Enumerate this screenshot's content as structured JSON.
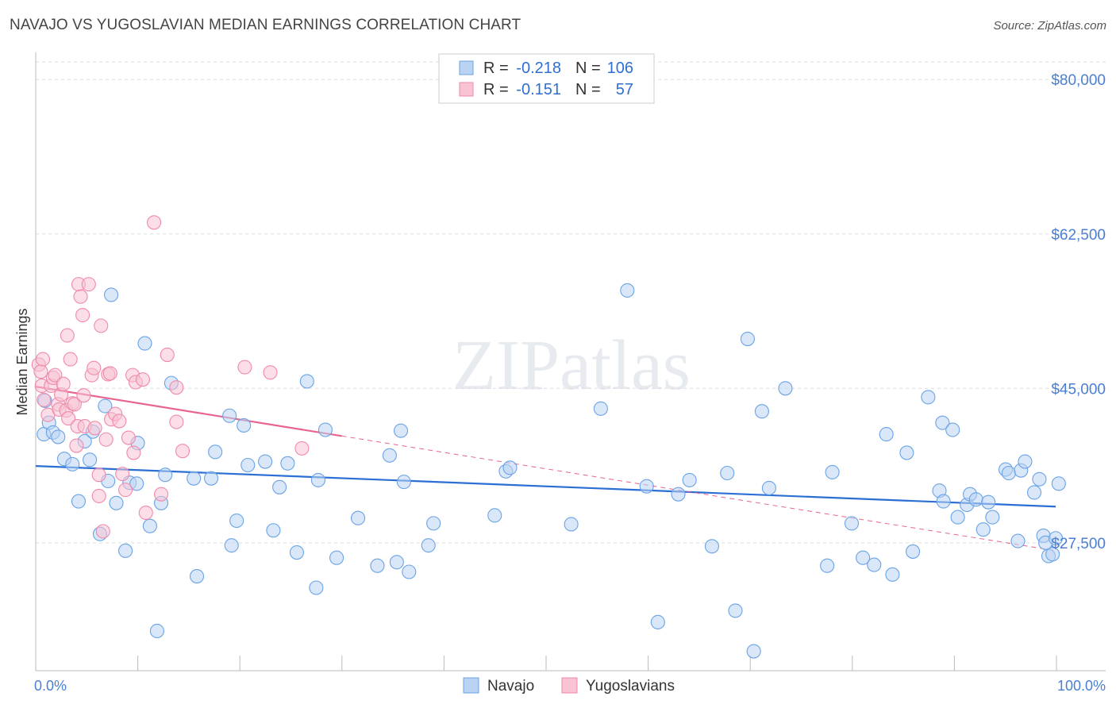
{
  "title": "NAVAJO VS YUGOSLAVIAN MEDIAN EARNINGS CORRELATION CHART",
  "source": "Source: ZipAtlas.com",
  "watermark": "ZIPatlas",
  "colors": {
    "navajo": "#6aa3e6",
    "navajo_fill": "#b9d3f3",
    "navajo_line": "#2b6fd4",
    "yugo": "#f08aaa",
    "yugo_fill": "#f8c3d3",
    "yugo_line": "#e8648f",
    "label": "#4a7fd4",
    "grid": "#dddddd"
  },
  "legend": {
    "r_label": "R =",
    "n_label": "N =",
    "rows": [
      {
        "r": "-0.218",
        "n": "106",
        "series": "navajo"
      },
      {
        "r": "-0.151",
        "n": "57",
        "series": "yugo"
      }
    ]
  },
  "bottom_legend": [
    "Navajo",
    "Yugoslavians"
  ],
  "chart_data": {
    "type": "scatter",
    "title": "NAVAJO VS YUGOSLAVIAN MEDIAN EARNINGS CORRELATION CHART",
    "xlabel": "",
    "ylabel": "Median Earnings",
    "xlim": [
      0,
      100
    ],
    "ylim": [
      13000,
      82000
    ],
    "x_tick_labels": [
      "0.0%",
      "100.0%"
    ],
    "y_ticks": [
      27500,
      45000,
      62500,
      80000
    ],
    "y_tick_labels": [
      "$27,500",
      "$45,000",
      "$62,500",
      "$80,000"
    ],
    "grid": "horizontal dashed",
    "legend_position": "top-center",
    "series": [
      {
        "name": "Navajo",
        "trend": {
          "x": [
            0,
            100
          ],
          "y": [
            36200,
            31600
          ]
        },
        "points": [
          [
            0.8,
            39800
          ],
          [
            0.9,
            43600
          ],
          [
            1.3,
            41100
          ],
          [
            1.7,
            40000
          ],
          [
            2.2,
            39500
          ],
          [
            2.8,
            37000
          ],
          [
            3.6,
            36400
          ],
          [
            4.2,
            32200
          ],
          [
            4.8,
            39000
          ],
          [
            5.3,
            36900
          ],
          [
            5.6,
            40100
          ],
          [
            6.3,
            28500
          ],
          [
            6.8,
            43000
          ],
          [
            7.1,
            34500
          ],
          [
            7.4,
            55600
          ],
          [
            7.9,
            32000
          ],
          [
            8.8,
            26600
          ],
          [
            9.2,
            34300
          ],
          [
            9.9,
            34200
          ],
          [
            10.0,
            38800
          ],
          [
            10.7,
            50100
          ],
          [
            11.2,
            29400
          ],
          [
            11.9,
            17500
          ],
          [
            12.3,
            32000
          ],
          [
            12.7,
            35200
          ],
          [
            13.3,
            45600
          ],
          [
            15.8,
            23700
          ],
          [
            15.5,
            34800
          ],
          [
            17.2,
            34800
          ],
          [
            17.6,
            37800
          ],
          [
            19.0,
            41900
          ],
          [
            19.2,
            27200
          ],
          [
            19.7,
            30000
          ],
          [
            20.4,
            40800
          ],
          [
            20.8,
            36300
          ],
          [
            22.5,
            36700
          ],
          [
            23.3,
            28900
          ],
          [
            23.9,
            33800
          ],
          [
            24.7,
            36500
          ],
          [
            25.6,
            26400
          ],
          [
            26.6,
            45800
          ],
          [
            27.5,
            22400
          ],
          [
            27.7,
            34600
          ],
          [
            28.4,
            40300
          ],
          [
            29.5,
            25800
          ],
          [
            31.6,
            30300
          ],
          [
            33.5,
            24900
          ],
          [
            34.7,
            37400
          ],
          [
            35.4,
            25300
          ],
          [
            35.8,
            40200
          ],
          [
            36.1,
            34400
          ],
          [
            36.6,
            24200
          ],
          [
            38.5,
            27200
          ],
          [
            39.0,
            29700
          ],
          [
            45.0,
            30600
          ],
          [
            46.1,
            35600
          ],
          [
            46.5,
            36000
          ],
          [
            52.5,
            29600
          ],
          [
            55.4,
            42700
          ],
          [
            58.0,
            56100
          ],
          [
            59.9,
            33900
          ],
          [
            61.0,
            18500
          ],
          [
            63.0,
            33000
          ],
          [
            64.1,
            34600
          ],
          [
            66.3,
            27100
          ],
          [
            67.8,
            35400
          ],
          [
            68.6,
            19800
          ],
          [
            69.8,
            50600
          ],
          [
            70.4,
            15200
          ],
          [
            71.2,
            42400
          ],
          [
            71.9,
            33700
          ],
          [
            73.5,
            45000
          ],
          [
            77.6,
            24900
          ],
          [
            78.1,
            35500
          ],
          [
            80.0,
            29700
          ],
          [
            81.1,
            25800
          ],
          [
            82.2,
            25000
          ],
          [
            83.4,
            39800
          ],
          [
            84.0,
            23900
          ],
          [
            85.4,
            37700
          ],
          [
            86.0,
            26500
          ],
          [
            87.5,
            44000
          ],
          [
            88.6,
            33400
          ],
          [
            88.9,
            41100
          ],
          [
            89.0,
            32200
          ],
          [
            89.9,
            40300
          ],
          [
            90.4,
            30400
          ],
          [
            91.3,
            31800
          ],
          [
            91.6,
            33000
          ],
          [
            92.2,
            32400
          ],
          [
            92.9,
            29000
          ],
          [
            93.4,
            32100
          ],
          [
            93.8,
            30400
          ],
          [
            95.1,
            35800
          ],
          [
            95.4,
            35400
          ],
          [
            96.3,
            27700
          ],
          [
            96.6,
            35700
          ],
          [
            97.0,
            36700
          ],
          [
            97.9,
            33200
          ],
          [
            98.4,
            34700
          ],
          [
            98.8,
            28300
          ],
          [
            99.0,
            27500
          ],
          [
            99.3,
            26000
          ],
          [
            99.7,
            26200
          ],
          [
            100.0,
            28000
          ],
          [
            100.3,
            34200
          ]
        ]
      },
      {
        "name": "Yugoslavians",
        "trend": {
          "x": [
            0,
            30
          ],
          "y": [
            45200,
            39600
          ]
        },
        "trend_dashed": {
          "x": [
            30,
            100
          ],
          "y": [
            39600,
            26600
          ]
        },
        "points": [
          [
            0.3,
            47700
          ],
          [
            0.5,
            46900
          ],
          [
            0.6,
            45300
          ],
          [
            0.7,
            48300
          ],
          [
            0.8,
            43700
          ],
          [
            1.2,
            42000
          ],
          [
            1.5,
            45300
          ],
          [
            1.7,
            46200
          ],
          [
            1.9,
            46500
          ],
          [
            2.2,
            43200
          ],
          [
            2.3,
            42600
          ],
          [
            2.5,
            44300
          ],
          [
            2.7,
            45500
          ],
          [
            3.0,
            42500
          ],
          [
            3.1,
            51000
          ],
          [
            3.2,
            41600
          ],
          [
            3.4,
            48300
          ],
          [
            3.6,
            43300
          ],
          [
            3.8,
            43200
          ],
          [
            4.0,
            38500
          ],
          [
            4.1,
            40700
          ],
          [
            4.2,
            56800
          ],
          [
            4.4,
            55400
          ],
          [
            4.6,
            53300
          ],
          [
            4.7,
            44200
          ],
          [
            4.8,
            40700
          ],
          [
            5.2,
            56800
          ],
          [
            5.5,
            46500
          ],
          [
            5.7,
            47300
          ],
          [
            5.8,
            40500
          ],
          [
            6.2,
            35200
          ],
          [
            6.2,
            32800
          ],
          [
            6.4,
            52100
          ],
          [
            6.6,
            28800
          ],
          [
            6.9,
            39200
          ],
          [
            7.1,
            46600
          ],
          [
            7.3,
            46700
          ],
          [
            7.4,
            41500
          ],
          [
            7.8,
            42100
          ],
          [
            8.2,
            41300
          ],
          [
            8.5,
            35300
          ],
          [
            8.8,
            33500
          ],
          [
            9.1,
            39400
          ],
          [
            9.5,
            46500
          ],
          [
            9.6,
            37700
          ],
          [
            9.8,
            45700
          ],
          [
            10.5,
            46000
          ],
          [
            10.8,
            30900
          ],
          [
            11.6,
            63800
          ],
          [
            12.3,
            33000
          ],
          [
            12.9,
            48800
          ],
          [
            13.8,
            45100
          ],
          [
            13.8,
            41200
          ],
          [
            14.4,
            37900
          ],
          [
            20.5,
            47400
          ],
          [
            23.0,
            46800
          ],
          [
            26.1,
            38200
          ]
        ]
      }
    ]
  }
}
